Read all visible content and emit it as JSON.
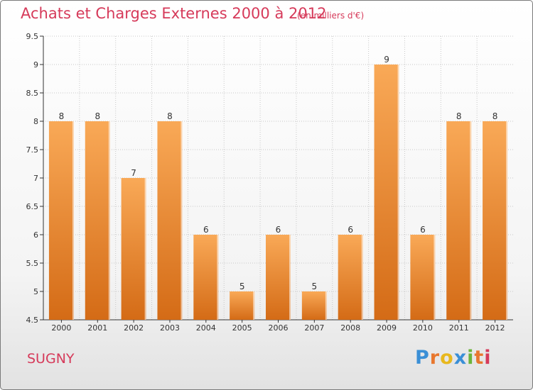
{
  "header": {
    "title": "Achats et Charges Externes 2000 à 2012",
    "subtitle": "(en milliers d'€)"
  },
  "footer": {
    "commune": "SUGNY",
    "logo": {
      "letters": [
        "P",
        "r",
        "o",
        "x",
        "i",
        "t",
        "i"
      ],
      "colors": [
        "#3a8fd6",
        "#e8772e",
        "#e8b81e",
        "#3a8fd6",
        "#6bb43a",
        "#e8772e",
        "#d63a5a"
      ]
    }
  },
  "colors": {
    "bar_top": "#f9a957",
    "bar_bottom": "#d46b16",
    "grid": "#c8c8c8",
    "axis": "#333333"
  },
  "chart_data": {
    "type": "bar",
    "categories": [
      "2000",
      "2001",
      "2002",
      "2003",
      "2004",
      "2005",
      "2006",
      "2007",
      "2008",
      "2009",
      "2010",
      "2011",
      "2012"
    ],
    "values": [
      8,
      8,
      7,
      8,
      6,
      5,
      6,
      5,
      6,
      9,
      6,
      8,
      8
    ],
    "data_labels": [
      "8",
      "8",
      "7",
      "8",
      "6",
      "5",
      "6",
      "5",
      "6",
      "9",
      "6",
      "8",
      "8"
    ],
    "title": "Achats et Charges Externes 2000 à 2012",
    "subtitle": "(en milliers d'€)",
    "ylim": [
      4.5,
      9.5
    ],
    "yticks": [
      4.5,
      5,
      5.5,
      6,
      6.5,
      7,
      7.5,
      8,
      8.5,
      9,
      9.5
    ],
    "ytick_labels": [
      "4.5",
      "5",
      "5.5",
      "6",
      "6.5",
      "7",
      "7.5",
      "8",
      "8.5",
      "9",
      "9.5"
    ],
    "grid": true
  }
}
